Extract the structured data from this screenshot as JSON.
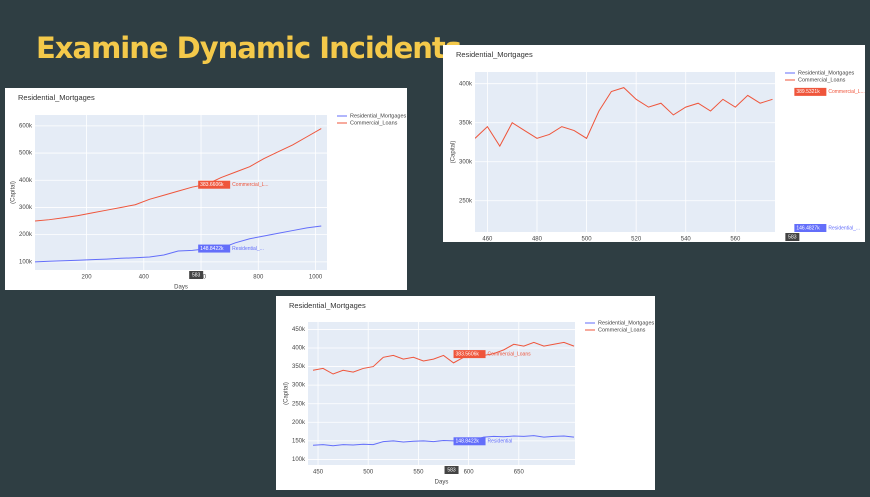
{
  "slide_title": "Examine Dynamic Incidents",
  "chart_data": [
    {
      "type": "line",
      "title": "Residential_Mortgages",
      "xlabel": "Days",
      "ylabel": "(Capital)",
      "x": [
        20,
        70,
        120,
        170,
        220,
        270,
        320,
        370,
        420,
        470,
        520,
        570,
        620,
        670,
        720,
        770,
        820,
        870,
        920,
        970,
        1020
      ],
      "series": [
        {
          "name": "Residential_Mortgages",
          "color": "#636efa",
          "values": [
            100000,
            102000,
            104000,
            106000,
            108000,
            110000,
            113000,
            115000,
            118000,
            125000,
            140000,
            142000,
            148000,
            150000,
            170000,
            185000,
            195000,
            205000,
            215000,
            225000,
            232000
          ]
        },
        {
          "name": "Commercial_Loans",
          "color": "#ef553b",
          "values": [
            250000,
            255000,
            262000,
            270000,
            280000,
            290000,
            300000,
            310000,
            330000,
            345000,
            360000,
            375000,
            385000,
            410000,
            430000,
            450000,
            480000,
            505000,
            530000,
            560000,
            590000
          ]
        }
      ],
      "xlim": [
        20,
        1040
      ],
      "ylim": [
        70000,
        640000
      ],
      "xticks": [
        200,
        400,
        600,
        800,
        1000
      ],
      "yticks": [
        {
          "value": 100000,
          "label": "100k"
        },
        {
          "value": 200000,
          "label": "200k"
        },
        {
          "value": 300000,
          "label": "300k"
        },
        {
          "value": 400000,
          "label": "400k"
        },
        {
          "value": 500000,
          "label": "500k"
        },
        {
          "value": 600000,
          "label": "600k"
        }
      ],
      "grid": true,
      "hover_x": 583,
      "hover_labels": [
        {
          "value": 148842.2,
          "label": "148.8422k",
          "name": "Residential_..."
        },
        {
          "value": 383660.6,
          "label": "383.6606k",
          "name": "Commercial_L..."
        }
      ]
    },
    {
      "type": "line",
      "title": "Residential_Mortgages",
      "ylabel": "(Capital)",
      "x": [
        455,
        460,
        465,
        470,
        475,
        480,
        485,
        490,
        495,
        500,
        505,
        510,
        515,
        520,
        525,
        530,
        535,
        540,
        545,
        550,
        555,
        560,
        565,
        570,
        575
      ],
      "series": [
        {
          "name": "Residential_Mortgages",
          "color": "#636efa",
          "values": [
            140000,
            141000,
            140000,
            142000,
            141000,
            143000,
            142000,
            144000,
            143000,
            145000,
            146000,
            147000,
            146000,
            147000,
            148000,
            147000,
            146000,
            148000,
            147000,
            148000,
            147000,
            148000,
            149000,
            148000,
            147000
          ]
        },
        {
          "name": "Commercial_Loans",
          "color": "#ef553b",
          "values": [
            330000,
            345000,
            320000,
            350000,
            340000,
            330000,
            335000,
            345000,
            340000,
            330000,
            365000,
            390000,
            395000,
            380000,
            370000,
            375000,
            360000,
            370000,
            375000,
            365000,
            380000,
            370000,
            385000,
            375000,
            380000
          ]
        }
      ],
      "xlim": [
        455,
        576
      ],
      "ylim": [
        210000,
        415000
      ],
      "xticks": [
        460,
        480,
        500,
        520,
        540,
        560
      ],
      "yticks": [
        {
          "value": 250000,
          "label": "250k"
        },
        {
          "value": 300000,
          "label": "300k"
        },
        {
          "value": 350000,
          "label": "350k"
        },
        {
          "value": 400000,
          "label": "400k"
        }
      ],
      "grid": true,
      "hover_x": 583,
      "hover_labels": [
        {
          "value": 146482.7,
          "label": "146.4827k",
          "name": "Residential_..."
        },
        {
          "value": 389532.1,
          "label": "389.5321k",
          "name": "Commercial_L..."
        }
      ]
    },
    {
      "type": "line",
      "title": "Residential_Mortgages",
      "xlabel": "Days",
      "ylabel": "(Capital)",
      "x": [
        445,
        455,
        465,
        475,
        485,
        495,
        505,
        515,
        525,
        535,
        545,
        555,
        565,
        575,
        585,
        595,
        605,
        615,
        625,
        635,
        645,
        655,
        665,
        675,
        685,
        695,
        705
      ],
      "series": [
        {
          "name": "Residential_Mortgages",
          "color": "#636efa",
          "values": [
            138000,
            140000,
            137000,
            140000,
            139000,
            141000,
            140000,
            148000,
            150000,
            147000,
            149000,
            150000,
            148000,
            151000,
            150000,
            149000,
            152000,
            160000,
            162000,
            161000,
            163000,
            162000,
            164000,
            160000,
            162000,
            163000,
            160000
          ]
        },
        {
          "name": "Commercial_Loans",
          "color": "#ef553b",
          "values": [
            340000,
            345000,
            330000,
            340000,
            335000,
            345000,
            350000,
            375000,
            380000,
            370000,
            375000,
            365000,
            370000,
            380000,
            360000,
            375000,
            390000,
            380000,
            385000,
            395000,
            410000,
            405000,
            415000,
            405000,
            410000,
            415000,
            405000
          ]
        }
      ],
      "xlim": [
        440,
        706
      ],
      "ylim": [
        85000,
        470000
      ],
      "xticks": [
        450,
        500,
        550,
        600,
        650
      ],
      "yticks": [
        {
          "value": 100000,
          "label": "100k"
        },
        {
          "value": 150000,
          "label": "150k"
        },
        {
          "value": 200000,
          "label": "200k"
        },
        {
          "value": 250000,
          "label": "250k"
        },
        {
          "value": 300000,
          "label": "300k"
        },
        {
          "value": 350000,
          "label": "350k"
        },
        {
          "value": 400000,
          "label": "400k"
        },
        {
          "value": 450000,
          "label": "450k"
        }
      ],
      "grid": true,
      "hover_x": 583,
      "hover_labels": [
        {
          "value": 148842.2,
          "label": "148.8422k",
          "name": "Residential"
        },
        {
          "value": 383560.6,
          "label": "383.5606k",
          "name": "Commercial_Loans"
        }
      ]
    }
  ]
}
